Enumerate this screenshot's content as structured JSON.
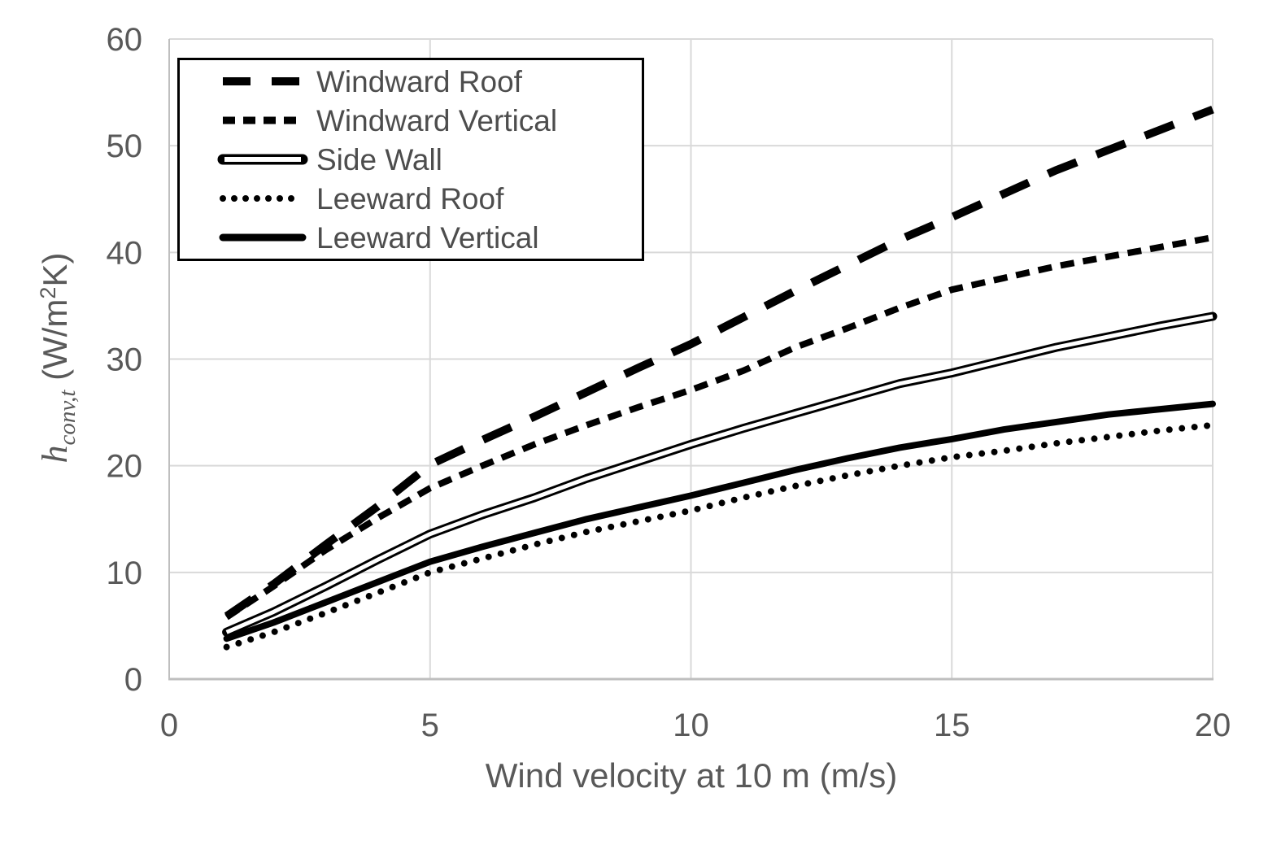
{
  "chart_data": {
    "type": "line",
    "title": "",
    "xlabel": "Wind velocity at 10 m (m/s)",
    "ylabel": "h_conv,t (W/m2K)",
    "ylabel_parts": {
      "var": "h",
      "sub": "conv,t",
      "mid": " (W/m",
      "sup": "2",
      "end": "K)"
    },
    "xlim": [
      0,
      20
    ],
    "ylim": [
      0,
      60
    ],
    "xticks": [
      0,
      5,
      10,
      15,
      20
    ],
    "yticks": [
      0,
      10,
      20,
      30,
      40,
      50,
      60
    ],
    "grid": true,
    "legend_position": "top-left-inside",
    "x": [
      1.1,
      2,
      3,
      4,
      5,
      6,
      7,
      8,
      9,
      10,
      11,
      12,
      13,
      14,
      15,
      16,
      17,
      18,
      19,
      20
    ],
    "series": [
      {
        "name": "Windward Roof",
        "style": "long-dash",
        "values": [
          5.9,
          8.9,
          12.6,
          16.2,
          20.1,
          22.4,
          24.6,
          26.9,
          29.2,
          31.4,
          33.9,
          36.4,
          38.8,
          41.2,
          43.3,
          45.5,
          47.7,
          49.6,
          51.5,
          53.4
        ]
      },
      {
        "name": "Windward Vertical",
        "style": "short-dash",
        "values": [
          5.8,
          8.7,
          12.1,
          15.1,
          17.9,
          20.0,
          22.0,
          23.8,
          25.5,
          27.1,
          28.9,
          31.1,
          32.9,
          34.8,
          36.5,
          37.6,
          38.7,
          39.6,
          40.5,
          41.4
        ]
      },
      {
        "name": "Side Wall",
        "style": "double",
        "values": [
          4.4,
          6.3,
          8.7,
          11.2,
          13.6,
          15.4,
          17.0,
          18.8,
          20.4,
          22.0,
          23.5,
          24.9,
          26.3,
          27.7,
          28.7,
          29.9,
          31.1,
          32.1,
          33.1,
          34.0
        ]
      },
      {
        "name": "Leeward Roof",
        "style": "dotted",
        "values": [
          3.0,
          4.4,
          6.2,
          8.1,
          10.0,
          11.3,
          12.6,
          13.8,
          14.8,
          15.8,
          17.0,
          18.1,
          19.1,
          20.0,
          20.8,
          21.4,
          22.1,
          22.7,
          23.3,
          23.8
        ]
      },
      {
        "name": "Leeward Vertical",
        "style": "solid",
        "values": [
          3.8,
          5.3,
          7.2,
          9.1,
          11.0,
          12.4,
          13.7,
          15.0,
          16.1,
          17.2,
          18.4,
          19.6,
          20.7,
          21.7,
          22.5,
          23.4,
          24.1,
          24.8,
          25.3,
          25.8
        ]
      }
    ],
    "colors": {
      "line": "#000000",
      "grid": "#D9D9D9",
      "axis": "#BFBFBF",
      "tick_text": "#595959",
      "title_text": "#595959",
      "legend_text": "#4d4d4d",
      "background": "#FFFFFF"
    }
  }
}
